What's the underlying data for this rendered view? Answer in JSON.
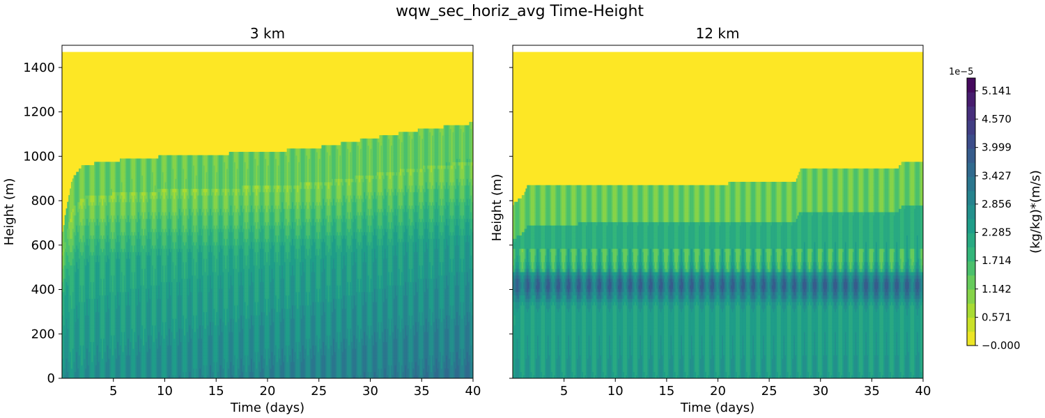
{
  "figure": {
    "suptitle": "wqw_sec_horiz_avg Time-Height"
  },
  "chart_data": [
    {
      "type": "heatmap",
      "title": "3 km",
      "xlabel": "Time (days)",
      "ylabel": "Height (m)",
      "xlim": [
        0,
        40
      ],
      "ylim": [
        0,
        1500
      ],
      "xticks": [
        5,
        10,
        15,
        20,
        25,
        30,
        35,
        40
      ],
      "yticks": [
        0,
        200,
        400,
        600,
        800,
        1000,
        1200,
        1400
      ],
      "data_top_height": 1470,
      "diurnal_period_days": 1,
      "boundary_layer_top": {
        "x": [
          0,
          1,
          2,
          5,
          10,
          15,
          20,
          25,
          30,
          35,
          40
        ],
        "y": [
          650,
          900,
          960,
          980,
          1000,
          1010,
          1020,
          1040,
          1080,
          1120,
          1150
        ]
      }
    },
    {
      "type": "heatmap",
      "title": "12 km",
      "xlabel": "Time (days)",
      "ylabel": "Height (m)",
      "xlim": [
        0,
        40
      ],
      "ylim": [
        0,
        1500
      ],
      "xticks": [
        5,
        10,
        15,
        20,
        25,
        30,
        35,
        40
      ],
      "yticks": [
        0,
        200,
        400,
        600,
        800,
        1000,
        1200,
        1400
      ],
      "y_ticklabels_shown": false,
      "data_top_height": 1470,
      "diurnal_period_days": 1,
      "boundary_layer_top": {
        "x": [
          0,
          1,
          1.5,
          27.5,
          28,
          37.5,
          38,
          40
        ],
        "y": [
          780,
          820,
          870,
          880,
          940,
          940,
          980,
          980
        ]
      },
      "max_flux_band_height": 420
    }
  ],
  "colorbar": {
    "label": "(kg/kg)*(m/s)",
    "offset_text": "1e−5",
    "ticks": [
      "−0.000",
      "0.571",
      "1.142",
      "1.714",
      "2.285",
      "2.856",
      "3.427",
      "3.999",
      "4.570",
      "5.141"
    ],
    "min": 0,
    "max": 5.4,
    "levels": 19,
    "colormap": "viridis_r",
    "colors": [
      "#fde725",
      "#b5de2b",
      "#6ece58",
      "#35b779",
      "#1f9e89",
      "#26828e",
      "#31688e",
      "#3e4989",
      "#482878",
      "#440154"
    ]
  }
}
